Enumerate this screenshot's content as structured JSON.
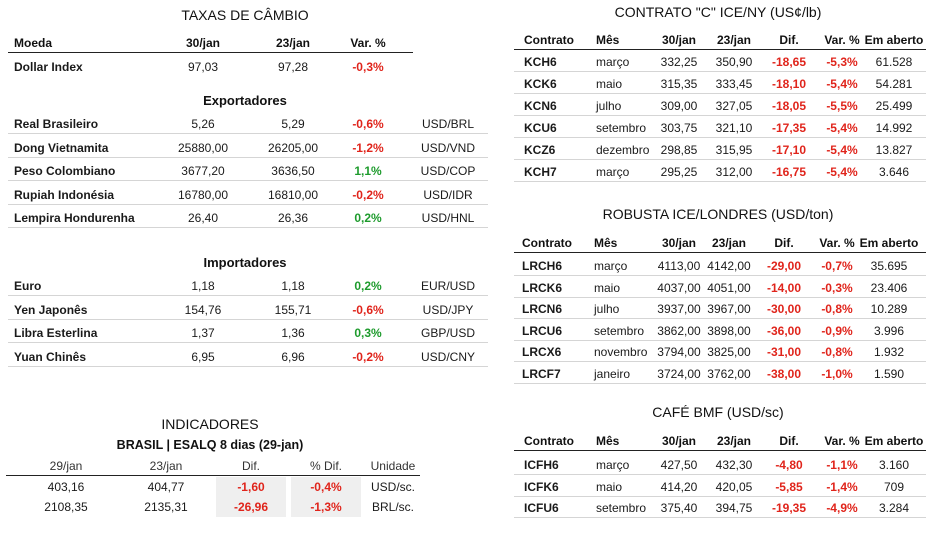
{
  "left": {
    "title": "TAXAS DE CÂMBIO",
    "headers": {
      "moeda": "Moeda",
      "d1": "30/jan",
      "d2": "23/jan",
      "var": "Var. %"
    },
    "dollar_index": {
      "name": "Dollar Index",
      "d1": "97,03",
      "d2": "97,28",
      "var": "-0,3%"
    },
    "exportadores_title": "Exportadores",
    "exportadores": [
      {
        "name": "Real Brasileiro",
        "d1": "5,26",
        "d2": "5,29",
        "var": "-0,6%",
        "pair": "USD/BRL"
      },
      {
        "name": "Dong Vietnamita",
        "d1": "25880,00",
        "d2": "26205,00",
        "var": "-1,2%",
        "pair": "USD/VND"
      },
      {
        "name": "Peso Colombiano",
        "d1": "3677,20",
        "d2": "3636,50",
        "var": "1,1%",
        "pair": "USD/COP"
      },
      {
        "name": "Rupiah Indonésia",
        "d1": "16780,00",
        "d2": "16810,00",
        "var": "-0,2%",
        "pair": "USD/IDR"
      },
      {
        "name": "Lempira Hondurenha",
        "d1": "26,40",
        "d2": "26,36",
        "var": "0,2%",
        "pair": "USD/HNL"
      }
    ],
    "importadores_title": "Importadores",
    "importadores": [
      {
        "name": "Euro",
        "d1": "1,18",
        "d2": "1,18",
        "var": "0,2%",
        "pair": "EUR/USD"
      },
      {
        "name": "Yen Japonês",
        "d1": "154,76",
        "d2": "155,71",
        "var": "-0,6%",
        "pair": "USD/JPY"
      },
      {
        "name": "Libra Esterlina",
        "d1": "1,37",
        "d2": "1,36",
        "var": "0,3%",
        "pair": "GBP/USD"
      },
      {
        "name": "Yuan Chinês",
        "d1": "6,95",
        "d2": "6,96",
        "var": "-0,2%",
        "pair": "USD/CNY"
      }
    ]
  },
  "indicadores": {
    "title": "INDICADORES",
    "subtitle": "BRASIL | ESALQ 8 dias (29-jan)",
    "headers": {
      "d1": "29/jan",
      "d2": "23/jan",
      "dif": "Dif.",
      "pdif": "% Dif.",
      "unidade": "Unidade"
    },
    "rows": [
      {
        "d1": "403,16",
        "d2": "404,77",
        "dif": "-1,60",
        "pdif": "-0,4%",
        "unidade": "USD/sc."
      },
      {
        "d1": "2108,35",
        "d2": "2135,31",
        "dif": "-26,96",
        "pdif": "-1,3%",
        "unidade": "BRL/sc."
      }
    ]
  },
  "contrato_c": {
    "title": "CONTRATO \"C\" ICE/NY (US¢/lb)",
    "headers": {
      "contrato": "Contrato",
      "mes": "Mês",
      "d1": "30/jan",
      "d2": "23/jan",
      "dif": "Dif.",
      "var": "Var. %",
      "aberto": "Em aberto"
    },
    "rows": [
      {
        "contrato": "KCH6",
        "mes": "março",
        "d1": "332,25",
        "d2": "350,90",
        "dif": "-18,65",
        "var": "-5,3%",
        "aberto": "61.528"
      },
      {
        "contrato": "KCK6",
        "mes": "maio",
        "d1": "315,35",
        "d2": "333,45",
        "dif": "-18,10",
        "var": "-5,4%",
        "aberto": "54.281"
      },
      {
        "contrato": "KCN6",
        "mes": "julho",
        "d1": "309,00",
        "d2": "327,05",
        "dif": "-18,05",
        "var": "-5,5%",
        "aberto": "25.499"
      },
      {
        "contrato": "KCU6",
        "mes": "setembro",
        "d1": "303,75",
        "d2": "321,10",
        "dif": "-17,35",
        "var": "-5,4%",
        "aberto": "14.992"
      },
      {
        "contrato": "KCZ6",
        "mes": "dezembro",
        "d1": "298,85",
        "d2": "315,95",
        "dif": "-17,10",
        "var": "-5,4%",
        "aberto": "13.827"
      },
      {
        "contrato": "KCH7",
        "mes": "março",
        "d1": "295,25",
        "d2": "312,00",
        "dif": "-16,75",
        "var": "-5,4%",
        "aberto": "3.646"
      }
    ]
  },
  "robusta": {
    "title": "ROBUSTA ICE/LONDRES (USD/ton)",
    "headers": {
      "contrato": "Contrato",
      "mes": "Mês",
      "d1": "30/jan",
      "d2": "23/jan",
      "dif": "Dif.",
      "var": "Var. %",
      "aberto": "Em aberto"
    },
    "rows": [
      {
        "contrato": "LRCH6",
        "mes": "março",
        "d1": "4113,00",
        "d2": "4142,00",
        "dif": "-29,00",
        "var": "-0,7%",
        "aberto": "35.695"
      },
      {
        "contrato": "LRCK6",
        "mes": "maio",
        "d1": "4037,00",
        "d2": "4051,00",
        "dif": "-14,00",
        "var": "-0,3%",
        "aberto": "23.406"
      },
      {
        "contrato": "LRCN6",
        "mes": "julho",
        "d1": "3937,00",
        "d2": "3967,00",
        "dif": "-30,00",
        "var": "-0,8%",
        "aberto": "10.289"
      },
      {
        "contrato": "LRCU6",
        "mes": "setembro",
        "d1": "3862,00",
        "d2": "3898,00",
        "dif": "-36,00",
        "var": "-0,9%",
        "aberto": "3.996"
      },
      {
        "contrato": "LRCX6",
        "mes": "novembro",
        "d1": "3794,00",
        "d2": "3825,00",
        "dif": "-31,00",
        "var": "-0,8%",
        "aberto": "1.932"
      },
      {
        "contrato": "LRCF7",
        "mes": "janeiro",
        "d1": "3724,00",
        "d2": "3762,00",
        "dif": "-38,00",
        "var": "-1,0%",
        "aberto": "1.590"
      }
    ]
  },
  "bmf": {
    "title": "CAFÉ BMF (USD/sc)",
    "headers": {
      "contrato": "Contrato",
      "mes": "Mês",
      "d1": "30/jan",
      "d2": "23/jan",
      "dif": "Dif.",
      "var": "Var. %",
      "aberto": "Em aberto"
    },
    "rows": [
      {
        "contrato": "ICFH6",
        "mes": "março",
        "d1": "427,50",
        "d2": "432,30",
        "dif": "-4,80",
        "var": "-1,1%",
        "aberto": "3.160"
      },
      {
        "contrato": "ICFK6",
        "mes": "maio",
        "d1": "414,20",
        "d2": "420,05",
        "dif": "-5,85",
        "var": "-1,4%",
        "aberto": "709"
      },
      {
        "contrato": "ICFU6",
        "mes": "setembro",
        "d1": "375,40",
        "d2": "394,75",
        "dif": "-19,35",
        "var": "-4,9%",
        "aberto": "3.284"
      }
    ]
  }
}
